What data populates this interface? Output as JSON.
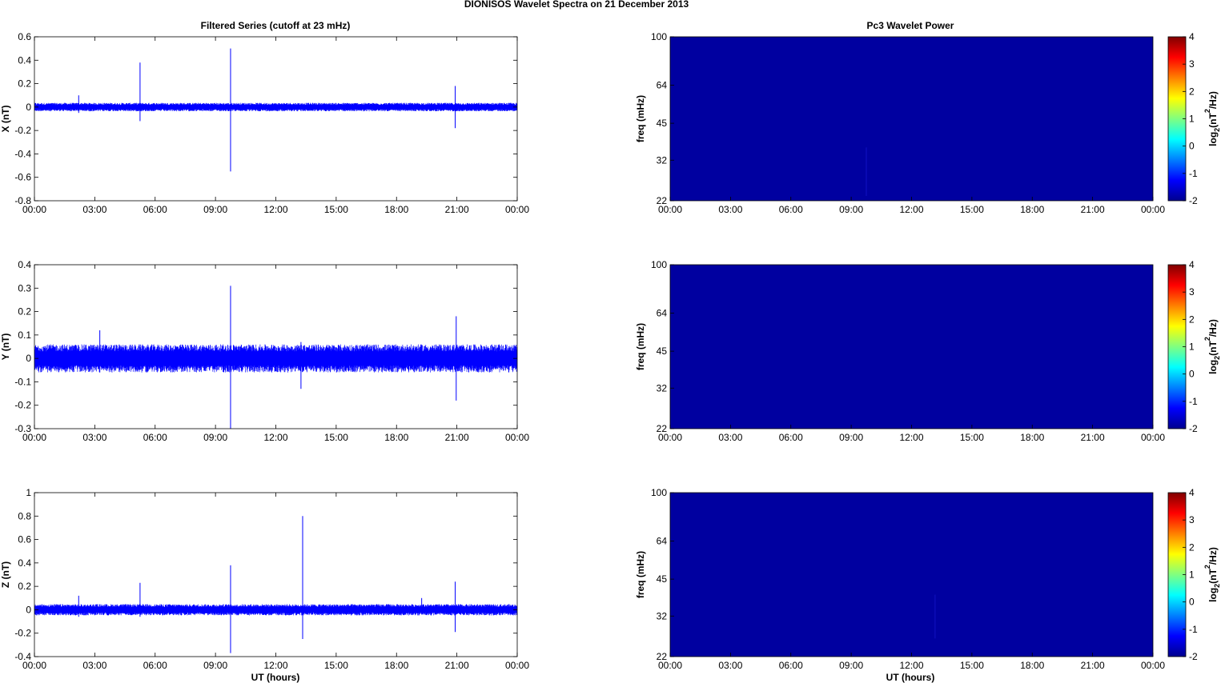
{
  "figure": {
    "title": "DIONISOS Wavelet Spectra on 21 December  2013",
    "left_title": "Filtered Series (cutoff at 23 mHz)",
    "right_title": "Pc3 Wavelet Power",
    "xlabel": "UT (hours)",
    "freq_label": "freq (mHz)",
    "colorbar_label_prefix": "log",
    "colorbar_label_sub": "2",
    "colorbar_label_mid": "(nT",
    "colorbar_label_sup": "2",
    "colorbar_label_suffix": "/Hz)"
  },
  "chart_data": [
    {
      "type": "line",
      "panel": "X",
      "ylabel": "X (nT)",
      "ylim": [
        -0.8,
        0.6
      ],
      "yticks": [
        -0.8,
        -0.6,
        -0.4,
        -0.2,
        0,
        0.2,
        0.4,
        0.6
      ],
      "xlim": [
        "00:00",
        "24:00"
      ],
      "xticks": [
        "00:00",
        "03:00",
        "06:00",
        "09:00",
        "12:00",
        "15:00",
        "18:00",
        "21:00",
        "00:00"
      ],
      "color": "#0000ff",
      "noise_band": [
        -0.03,
        0.03
      ],
      "spikes": [
        {
          "t": "02:12",
          "min": -0.05,
          "max": 0.1
        },
        {
          "t": "05:15",
          "min": -0.12,
          "max": 0.38
        },
        {
          "t": "09:45",
          "min": -0.55,
          "max": 0.5
        },
        {
          "t": "20:55",
          "min": -0.18,
          "max": 0.18
        }
      ]
    },
    {
      "type": "line",
      "panel": "Y",
      "ylabel": "Y (nT)",
      "ylim": [
        -0.3,
        0.4
      ],
      "yticks": [
        -0.3,
        -0.2,
        -0.1,
        0,
        0.1,
        0.2,
        0.3,
        0.4
      ],
      "xlim": [
        "00:00",
        "24:00"
      ],
      "xticks": [
        "00:00",
        "03:00",
        "06:00",
        "09:00",
        "12:00",
        "15:00",
        "18:00",
        "21:00",
        "00:00"
      ],
      "color": "#0000ff",
      "noise_band": [
        -0.05,
        0.05
      ],
      "spikes": [
        {
          "t": "03:15",
          "min": -0.06,
          "max": 0.12
        },
        {
          "t": "09:45",
          "min": -0.3,
          "max": 0.31
        },
        {
          "t": "13:15",
          "min": -0.13,
          "max": 0.07
        },
        {
          "t": "20:58",
          "min": -0.18,
          "max": 0.18
        }
      ]
    },
    {
      "type": "line",
      "panel": "Z",
      "ylabel": "Z (nT)",
      "ylim": [
        -0.4,
        1.0
      ],
      "yticks": [
        -0.4,
        -0.2,
        0,
        0.2,
        0.4,
        0.6,
        0.8,
        1
      ],
      "xlim": [
        "00:00",
        "24:00"
      ],
      "xticks": [
        "00:00",
        "03:00",
        "06:00",
        "09:00",
        "12:00",
        "15:00",
        "18:00",
        "21:00",
        "00:00"
      ],
      "color": "#0000ff",
      "noise_band": [
        -0.04,
        0.04
      ],
      "spikes": [
        {
          "t": "02:12",
          "min": -0.06,
          "max": 0.12
        },
        {
          "t": "05:15",
          "min": -0.06,
          "max": 0.23
        },
        {
          "t": "09:45",
          "min": -0.37,
          "max": 0.38
        },
        {
          "t": "13:20",
          "min": -0.25,
          "max": 0.8
        },
        {
          "t": "19:15",
          "min": -0.04,
          "max": 0.1
        },
        {
          "t": "20:55",
          "min": -0.19,
          "max": 0.24
        }
      ]
    },
    {
      "type": "heatmap",
      "panel": "X-power",
      "ylabel": "freq (mHz)",
      "y_scale": "log",
      "ylim": [
        22,
        100
      ],
      "yticks": [
        22,
        32,
        45,
        64,
        100
      ],
      "xticks": [
        "00:00",
        "03:00",
        "06:00",
        "09:00",
        "12:00",
        "15:00",
        "18:00",
        "21:00",
        "00:00"
      ],
      "colorbar_ticks": [
        -2,
        -1,
        0,
        1,
        2,
        3,
        4
      ],
      "clim": [
        -2,
        4
      ],
      "background_value": -2,
      "features": [
        {
          "t": "09:45",
          "fmin": 23,
          "fmax": 36,
          "value": -1.8
        }
      ]
    },
    {
      "type": "heatmap",
      "panel": "Y-power",
      "ylabel": "freq (mHz)",
      "y_scale": "log",
      "ylim": [
        22,
        100
      ],
      "yticks": [
        22,
        32,
        45,
        64,
        100
      ],
      "xticks": [
        "00:00",
        "03:00",
        "06:00",
        "09:00",
        "12:00",
        "15:00",
        "18:00",
        "21:00",
        "00:00"
      ],
      "colorbar_ticks": [
        -2,
        -1,
        0,
        1,
        2,
        3,
        4
      ],
      "clim": [
        -2,
        4
      ],
      "background_value": -2,
      "features": []
    },
    {
      "type": "heatmap",
      "panel": "Z-power",
      "ylabel": "freq (mHz)",
      "y_scale": "log",
      "ylim": [
        22,
        100
      ],
      "yticks": [
        22,
        32,
        45,
        64,
        100
      ],
      "xticks": [
        "00:00",
        "03:00",
        "06:00",
        "09:00",
        "12:00",
        "15:00",
        "18:00",
        "21:00",
        "00:00"
      ],
      "colorbar_ticks": [
        -2,
        -1,
        0,
        1,
        2,
        3,
        4
      ],
      "clim": [
        -2,
        4
      ],
      "background_value": -2,
      "features": [
        {
          "t": "13:10",
          "fmin": 26,
          "fmax": 39,
          "value": -1.8
        }
      ]
    }
  ]
}
